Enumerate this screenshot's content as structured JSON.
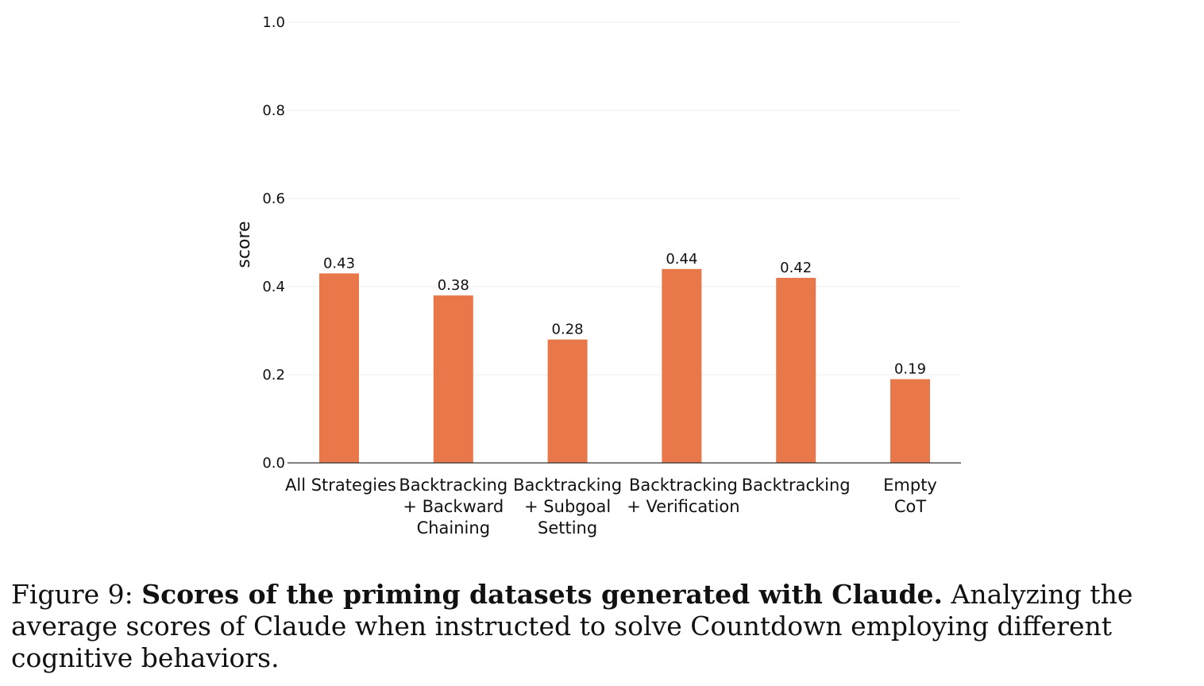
{
  "chart_data": {
    "type": "bar",
    "categories": [
      [
        "All Strategies"
      ],
      [
        "Backtracking",
        "+ Backward",
        "Chaining"
      ],
      [
        "Backtracking",
        "+ Subgoal",
        "Setting"
      ],
      [
        "Backtracking",
        "+ Verification"
      ],
      [
        "Backtracking"
      ],
      [
        "Empty",
        "CoT"
      ]
    ],
    "values": [
      0.43,
      0.38,
      0.28,
      0.44,
      0.42,
      0.19
    ],
    "value_labels": [
      "0.43",
      "0.38",
      "0.28",
      "0.44",
      "0.42",
      "0.19"
    ],
    "ylabel": "score",
    "xlabel": "",
    "ylim": [
      0,
      1.0
    ],
    "yticks": [
      "0.0",
      "0.2",
      "0.4",
      "0.6",
      "0.8",
      "1.0"
    ],
    "ytick_values": [
      0,
      0.2,
      0.4,
      0.6,
      0.8,
      1.0
    ],
    "grid": true,
    "bar_color": "#e8774a"
  },
  "caption": {
    "prefix": "Figure 9: ",
    "bold": "Scores of the priming datasets generated with Claude.",
    "text": " Analyzing the average scores of Claude when instructed to solve Countdown employing different cognitive behaviors."
  }
}
